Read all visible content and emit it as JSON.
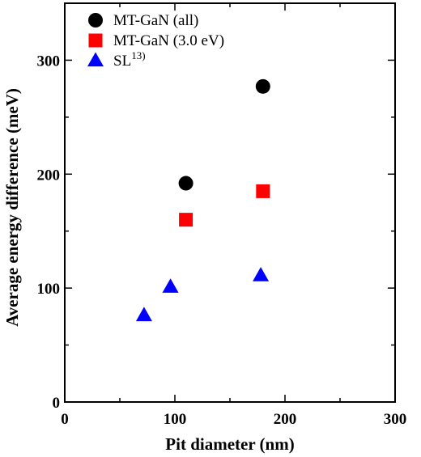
{
  "chart_data": {
    "type": "scatter",
    "title": "",
    "xlabel": "Pit diameter (nm)",
    "ylabel": "Average energy difference (meV)",
    "xlim": [
      0,
      300
    ],
    "ylim": [
      0,
      350
    ],
    "xticks": [
      0,
      100,
      200,
      300
    ],
    "yticks": [
      0,
      100,
      200,
      300
    ],
    "grid": false,
    "legend_position": "top-left",
    "series": [
      {
        "name": "MT-GaN (all)",
        "marker": "circle",
        "color": "#000000",
        "points": [
          {
            "x": 110,
            "y": 192
          },
          {
            "x": 180,
            "y": 277
          }
        ]
      },
      {
        "name": "MT-GaN (3.0 eV)",
        "marker": "square",
        "color": "#ff0000",
        "points": [
          {
            "x": 110,
            "y": 160
          },
          {
            "x": 180,
            "y": 185
          }
        ]
      },
      {
        "name": "SL",
        "name_superscript": "13)",
        "marker": "triangle",
        "color": "#0000ff",
        "points": [
          {
            "x": 72,
            "y": 76
          },
          {
            "x": 96,
            "y": 101
          },
          {
            "x": 178,
            "y": 111
          }
        ]
      }
    ]
  }
}
